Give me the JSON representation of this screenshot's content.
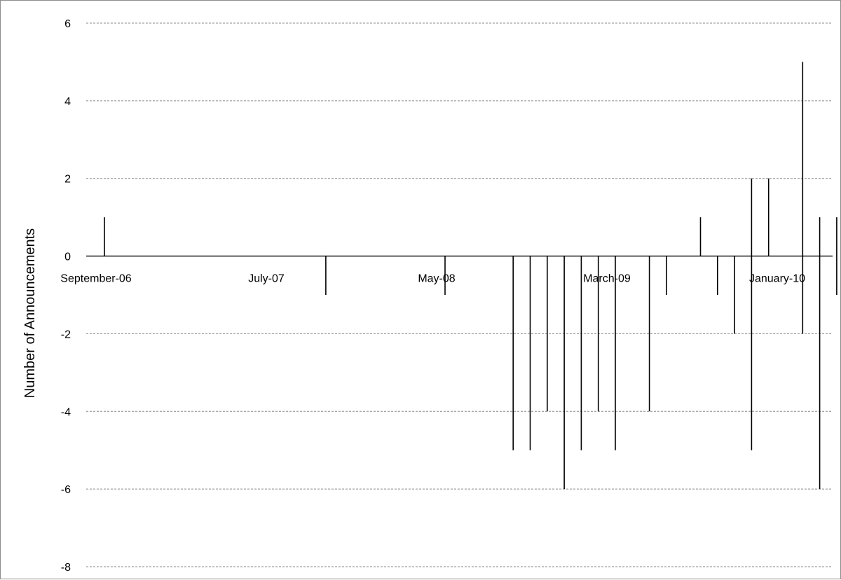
{
  "chart_data": {
    "type": "bar",
    "title": "",
    "xlabel": "",
    "ylabel": "Number of Announcements",
    "ylim": [
      -8,
      6
    ],
    "y_ticks": [
      6,
      4,
      2,
      0,
      -2,
      -4,
      -6,
      -8
    ],
    "grid": true,
    "legend": "none",
    "x_tick_labels": [
      "September-06",
      "July-07",
      "May-08",
      "March-09",
      "January-10"
    ],
    "x_tick_months": [
      "2006-09",
      "2007-07",
      "2008-05",
      "2009-03",
      "2010-01"
    ],
    "x_range_months": [
      "2006-08",
      "2010-04"
    ],
    "series": [
      {
        "spikes": [
          {
            "month": "2006-09",
            "high": 1,
            "low": 0
          },
          {
            "month": "2007-10",
            "high": 0,
            "low": -1
          },
          {
            "month": "2008-05",
            "high": 0,
            "low": -1
          },
          {
            "month": "2008-09",
            "high": 0,
            "low": -5
          },
          {
            "month": "2008-10",
            "high": 0,
            "low": -5
          },
          {
            "month": "2008-11",
            "high": 0,
            "low": -4
          },
          {
            "month": "2008-12",
            "high": 0,
            "low": -6
          },
          {
            "month": "2009-01",
            "high": 0,
            "low": -5
          },
          {
            "month": "2009-02",
            "high": 0,
            "low": -4
          },
          {
            "month": "2009-03",
            "high": 0,
            "low": -5
          },
          {
            "month": "2009-05",
            "high": 0,
            "low": -4
          },
          {
            "month": "2009-06",
            "high": 0,
            "low": -1
          },
          {
            "month": "2009-08",
            "high": 1,
            "low": 0
          },
          {
            "month": "2009-09",
            "high": 0,
            "low": -1
          },
          {
            "month": "2009-10",
            "high": 0,
            "low": -2
          },
          {
            "month": "2009-11",
            "high": 2,
            "low": -5
          },
          {
            "month": "2009-12",
            "high": 2,
            "low": 0
          },
          {
            "month": "2010-02",
            "high": 5,
            "low": -2
          },
          {
            "month": "2010-03",
            "high": 1,
            "low": -6
          },
          {
            "month": "2010-04",
            "high": 1,
            "low": -1
          }
        ]
      }
    ]
  },
  "colors": {
    "spike": "#000000",
    "gridline": "#8a8a8a",
    "zero_line": "#000000",
    "border": "#8c8c8c",
    "background": "#ffffff"
  }
}
